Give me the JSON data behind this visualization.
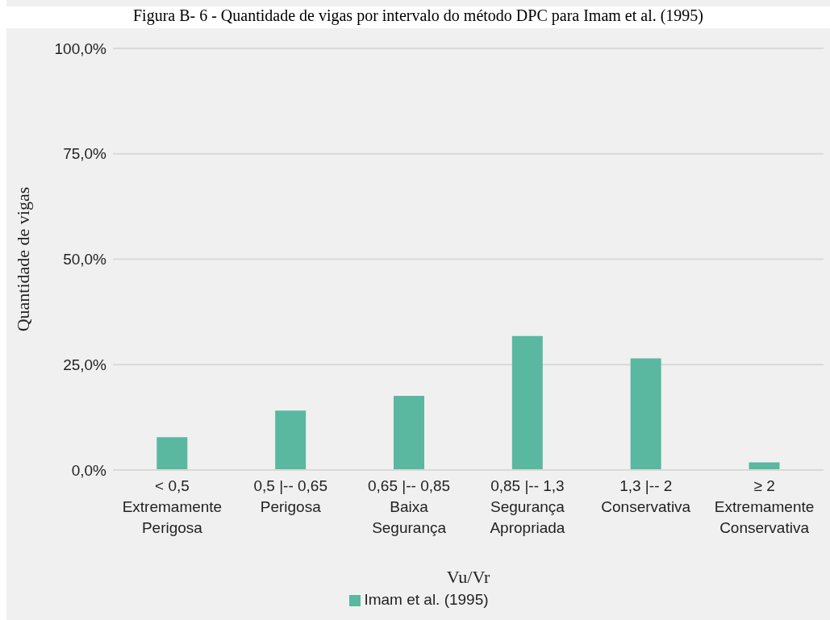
{
  "chart_data": {
    "type": "bar",
    "title": "Figura B- 6 - Quantidade de vigas por intervalo do método DPC para Imam et al. (1995)",
    "xlabel": "Vu/Vr",
    "ylabel": "Quantidade de vigas",
    "categories": [
      "< 0,5\nExtremamente\nPerigosa",
      "0,5 |-- 0,65\nPerigosa",
      "0,65 |-- 0,85\nBaixa\nSegurança",
      "0,85 |-- 1,3\nSegurança\nApropriada",
      "1,3 |-- 2\nConservativa",
      "≥ 2\nExtremamente\nConservativa"
    ],
    "series": [
      {
        "name": "Imam et al. (1995)",
        "color": "#5ab8a0",
        "values": [
          7.8,
          14.1,
          17.6,
          31.8,
          26.5,
          1.8
        ]
      }
    ],
    "ylim": [
      0,
      100
    ],
    "yticks": [
      {
        "value": 0,
        "label": "0,0%"
      },
      {
        "value": 25,
        "label": "25,0%"
      },
      {
        "value": 50,
        "label": "50,0%"
      },
      {
        "value": 75,
        "label": "75,0%"
      },
      {
        "value": 100,
        "label": "100,0%"
      }
    ],
    "grid": "y",
    "legend": "bottom"
  }
}
